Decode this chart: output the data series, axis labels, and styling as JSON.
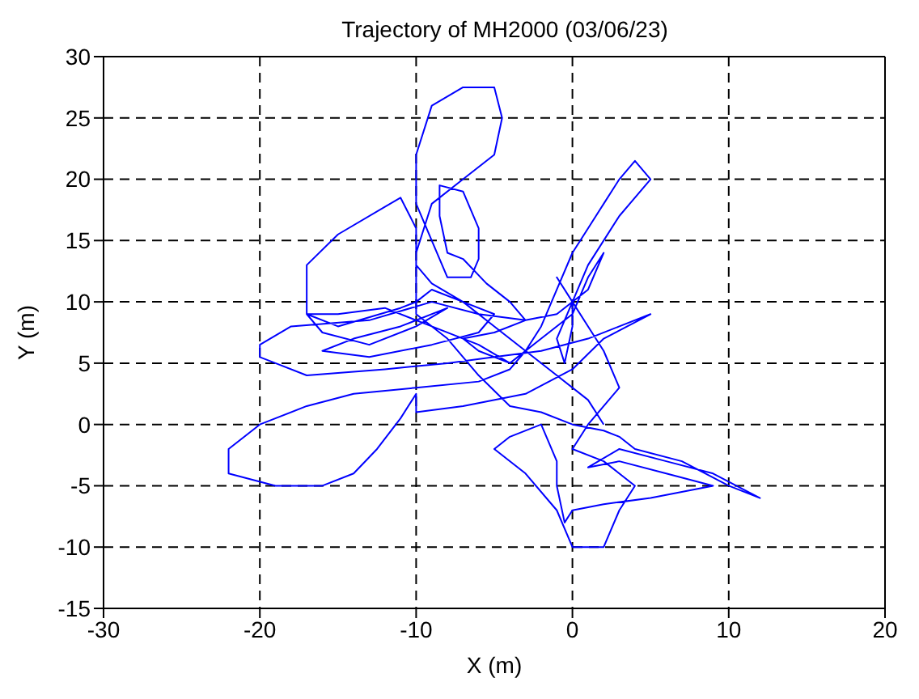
{
  "chart_data": {
    "type": "line",
    "title": "Trajectory of MH2000 (03/06/23)",
    "xlabel": "X (m)",
    "ylabel": "Y (m)",
    "xlim": [
      -30,
      20
    ],
    "xticks": [
      -30,
      -20,
      -10,
      0,
      10,
      20
    ],
    "ylim": [
      -15,
      30
    ],
    "yticks": [
      -15,
      -10,
      -5,
      0,
      5,
      10,
      15,
      20,
      25,
      30
    ],
    "grid": true,
    "marker": "none",
    "line_style": "solid",
    "series": [
      {
        "color": "#0000ff",
        "x": [
          -4,
          -6,
          -9,
          -12,
          -15,
          -17,
          -16,
          -13,
          -10,
          -8,
          -11,
          -14,
          -16,
          -13,
          -9,
          -6,
          -5,
          -7,
          -9,
          -10,
          -10,
          -11,
          -15,
          -17,
          -17,
          -15,
          -11,
          -10,
          -10,
          -9,
          -7,
          -5,
          -4.5,
          -5,
          -7,
          -9,
          -10,
          -10,
          -8,
          -6.5,
          -6,
          -6,
          -7,
          -8.5,
          -8.5,
          -8,
          -7,
          -5.5,
          -4,
          -3,
          -5,
          -7,
          -6,
          -4,
          -2,
          0,
          1,
          2,
          1,
          -1,
          -3,
          -6,
          -9,
          -13,
          -18,
          -20,
          -20,
          -19,
          -17,
          -12,
          -8,
          -5,
          -2,
          1,
          3,
          5,
          2,
          0,
          -3,
          -7,
          -10,
          -10,
          -11,
          -12.5,
          -14,
          -16,
          -19,
          -22,
          -22,
          -20,
          -17,
          -14,
          -10,
          -6,
          -4,
          -3,
          -2,
          -1,
          0,
          1,
          2,
          3,
          4,
          5,
          3,
          1,
          0,
          -1,
          -0.5,
          0,
          0,
          -0.5,
          -1,
          0,
          1,
          2,
          3,
          1,
          0,
          2,
          4,
          3,
          2,
          0,
          -1,
          -3,
          -5,
          -4,
          -2,
          -1,
          -1,
          -0.5,
          0,
          2,
          5,
          9,
          6,
          3,
          1,
          3,
          6,
          9,
          12,
          10,
          7,
          4,
          3,
          2,
          0,
          -2,
          -4,
          -6,
          -8,
          -10,
          -10,
          -9,
          -7,
          -5,
          -3,
          -1,
          1,
          2
        ],
        "values": [
          5,
          6.5,
          8,
          9.5,
          9,
          9,
          7.5,
          6.5,
          8,
          9.5,
          8,
          7,
          6,
          5.5,
          6.5,
          7.5,
          9,
          10,
          11.5,
          13,
          16,
          18.5,
          15.5,
          13,
          9,
          8,
          9.5,
          10,
          14,
          18,
          20,
          22,
          25,
          27.5,
          27.5,
          26,
          22,
          18,
          12,
          12,
          13.5,
          16,
          19,
          19.5,
          17,
          14,
          13.5,
          11.5,
          10,
          8.5,
          7.5,
          7,
          6,
          5,
          7,
          9,
          12,
          14,
          11,
          9,
          8.5,
          9,
          10,
          8.5,
          8,
          6.5,
          5.5,
          5,
          4,
          4.5,
          5,
          5.5,
          6,
          7,
          8,
          9,
          7,
          4.5,
          2.5,
          1.5,
          1,
          2.5,
          0.5,
          -2,
          -4,
          -5,
          -5,
          -4,
          -2,
          0,
          1.5,
          2.5,
          3,
          3.5,
          4.5,
          6,
          8,
          11,
          14,
          16,
          18,
          20,
          21.5,
          20,
          17,
          13,
          10,
          7,
          5,
          8,
          10,
          11,
          12,
          10,
          8,
          6,
          3,
          0,
          -2,
          -3,
          -5,
          -7,
          -10,
          -10,
          -7,
          -4,
          -2,
          -1,
          0,
          -3,
          -5,
          -8,
          -7,
          -6.5,
          -6,
          -5,
          -4,
          -3,
          -3.5,
          -2,
          -3,
          -4,
          -6,
          -5,
          -3,
          -2,
          -1,
          -0.5,
          0,
          1,
          1.5,
          4,
          7,
          9,
          10,
          11,
          10,
          8,
          6,
          4,
          2,
          0
        ]
      }
    ]
  }
}
